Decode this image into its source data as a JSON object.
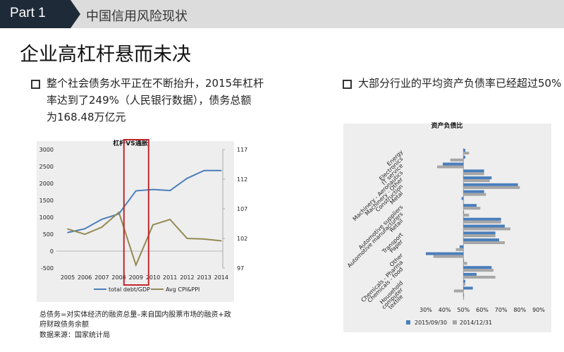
{
  "header": {
    "part": "Part  1",
    "title": "中国信用风险现状"
  },
  "page_title": "企业高杠杆悬而未决",
  "bullets": {
    "left": [
      "整个社会债务水平正在不断抬升，2015年杠杆",
      "率达到了249%（人民银行数据），债务总额",
      "为168.48万亿元"
    ],
    "right": "大部分行业的平均资产负债率已经超过50%"
  },
  "notes": {
    "line1": "总债务=对实体经济的融资总量–来自国内股票市场的融资+政",
    "line2": "府财政债务余额",
    "source": "数据来源：国家统计局"
  },
  "colors": {
    "blue": "#4a7ebb",
    "olive": "#948a54",
    "gray": "#a6a6a6",
    "highlight": "#c0282d",
    "header_dark": "#1f2a38"
  },
  "chart_data": [
    {
      "type": "line",
      "title": "杠杆VS通胀",
      "x": [
        2005,
        2006,
        2007,
        2008,
        2009,
        2010,
        2011,
        2012,
        2013,
        2014
      ],
      "y_left_ticks": [
        "3000",
        "2500",
        "2000",
        "1500",
        "1000",
        "500",
        "0",
        "-500"
      ],
      "y_right_ticks": [
        "117",
        "112",
        "107",
        "102",
        "97"
      ],
      "ylim_left": [
        -500,
        3000
      ],
      "ylim_right": [
        97,
        117
      ],
      "series": [
        {
          "name": "total debt/GDP",
          "axis": "left",
          "values": [
            550,
            660,
            940,
            1100,
            1780,
            1820,
            1790,
            2150,
            2380,
            2380
          ]
        },
        {
          "name": "Avg CPI&PPI",
          "axis": "right",
          "values": [
            103.6,
            102.7,
            103.9,
            106.4,
            97.5,
            104.3,
            105.2,
            102.0,
            101.9,
            101.6
          ]
        }
      ],
      "highlight": "2009",
      "legend": "bottom"
    },
    {
      "type": "bar",
      "orientation": "horizontal",
      "title": "资产负债比",
      "categories": [
        "Energy",
        "Electronics",
        "IT service",
        "Machinery - Aeronautics",
        "Machinery - Other",
        "Construction",
        "Metal",
        "",
        "Automotive suppliers",
        "Automotive manufacturers",
        "Retail",
        "",
        "Transport",
        "Paper",
        "",
        "Other",
        "Chemicals - Pharma",
        "Chemicals - food",
        "",
        "Household",
        "computer",
        "textile"
      ],
      "series": [
        {
          "name": "2015/09/30",
          "values": [
            51,
            51,
            39,
            61,
            65,
            79,
            61,
            49,
            57,
            50,
            70,
            72,
            67,
            69,
            48,
            30,
            50,
            65,
            57,
            51,
            55,
            50
          ]
        },
        {
          "name": "2014/12/31",
          "values": [
            53,
            43,
            36,
            61,
            64,
            80,
            62,
            50,
            59,
            53,
            70,
            75,
            67,
            72,
            46,
            34,
            52,
            66,
            67,
            51,
            45,
            50
          ]
        }
      ],
      "x_ticks": [
        "30%",
        "40%",
        "50%",
        "60%",
        "70%",
        "80%",
        "90%"
      ],
      "xlim": [
        30,
        90
      ],
      "legend": "bottom"
    }
  ]
}
